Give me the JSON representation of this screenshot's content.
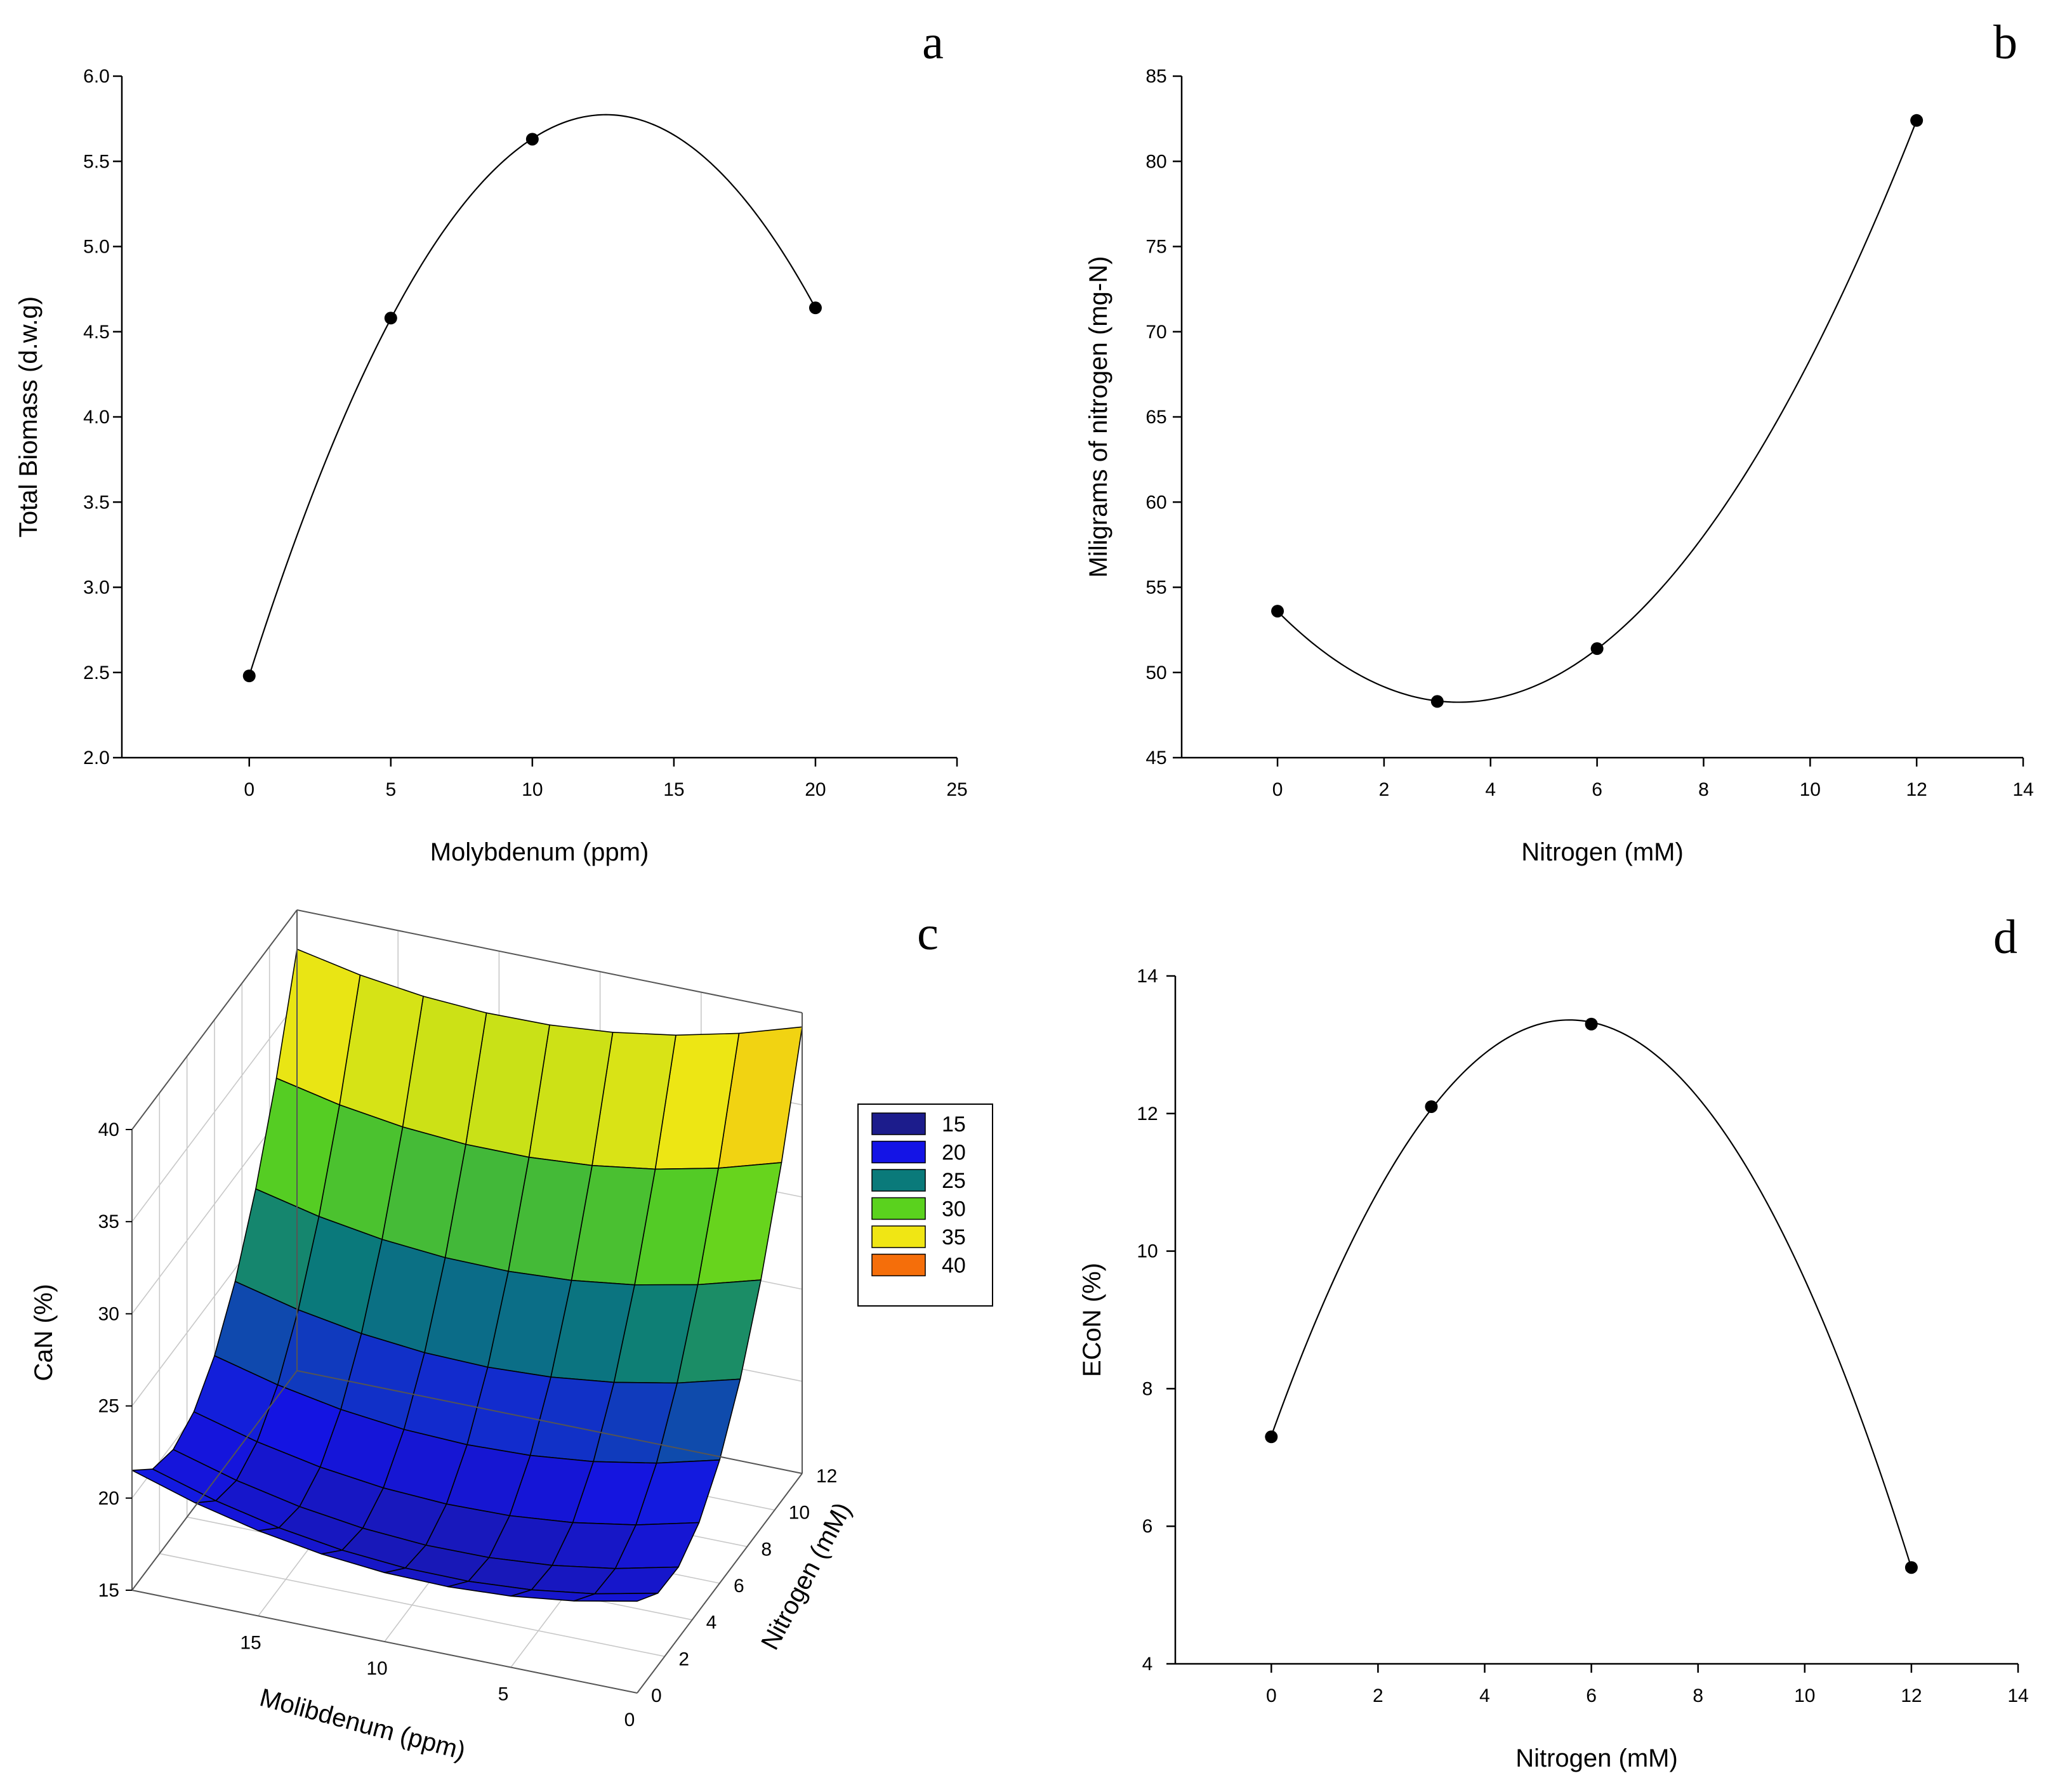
{
  "chart_data": [
    {
      "panel": "a",
      "type": "scatter",
      "xlabel": "Molybdenum (ppm)",
      "ylabel": "Total Biomass (d.w.g)",
      "x": [
        0,
        5,
        10,
        20
      ],
      "y": [
        2.48,
        4.58,
        5.63,
        4.64
      ],
      "fit": "quadratic",
      "xlim": [
        -4.5,
        25
      ],
      "ylim": [
        2.0,
        6.0
      ],
      "xticks": [
        "0",
        "5",
        "10",
        "15",
        "20",
        "25"
      ],
      "yticks": [
        "2.0",
        "2.5",
        "3.0",
        "3.5",
        "4.0",
        "4.5",
        "5.0",
        "5.5",
        "6.0"
      ],
      "grid": false
    },
    {
      "panel": "b",
      "type": "scatter",
      "xlabel": "Nitrogen (mM)",
      "ylabel": "Miligrams of nitrogen (mg-N)",
      "x": [
        0,
        3,
        6,
        12
      ],
      "y": [
        53.6,
        48.3,
        51.4,
        82.4
      ],
      "fit": "quadratic",
      "xlim": [
        -1.8,
        14
      ],
      "ylim": [
        45,
        85
      ],
      "xticks": [
        "0",
        "2",
        "4",
        "6",
        "8",
        "10",
        "12",
        "14"
      ],
      "yticks": [
        "45",
        "50",
        "55",
        "60",
        "65",
        "70",
        "75",
        "80",
        "85"
      ],
      "grid": false
    },
    {
      "panel": "c",
      "type": "surface",
      "xlabel": "Molibdenum (ppm)",
      "ylabel": "Nitrogen (mM)",
      "zlabel": "CaN (%)",
      "xticks": [
        "15",
        "10",
        "5",
        "0"
      ],
      "yticks": [
        "0",
        "2",
        "4",
        "6",
        "8",
        "10",
        "12"
      ],
      "zticks": [
        "15",
        "20",
        "25",
        "30",
        "35",
        "40"
      ],
      "zlim": [
        15,
        40
      ],
      "legend": [
        "15",
        "20",
        "25",
        "30",
        "35",
        "40"
      ],
      "legend_colors": [
        "#1c1c8c",
        "#1414e6",
        "#0a7a7a",
        "#5ad21e",
        "#f0e614",
        "#f56e0a"
      ],
      "legend_position": "right",
      "grid": true
    },
    {
      "panel": "d",
      "type": "scatter",
      "xlabel": "Nitrogen (mM)",
      "ylabel": "ECoN (%)",
      "x": [
        0,
        3,
        6,
        12
      ],
      "y": [
        7.3,
        12.1,
        13.3,
        5.4
      ],
      "fit": "quadratic",
      "xlim": [
        -1.8,
        14
      ],
      "ylim": [
        4,
        14
      ],
      "xticks": [
        "0",
        "2",
        "4",
        "6",
        "8",
        "10",
        "12",
        "14"
      ],
      "yticks": [
        "4",
        "6",
        "8",
        "10",
        "12",
        "14"
      ],
      "grid": false
    }
  ]
}
